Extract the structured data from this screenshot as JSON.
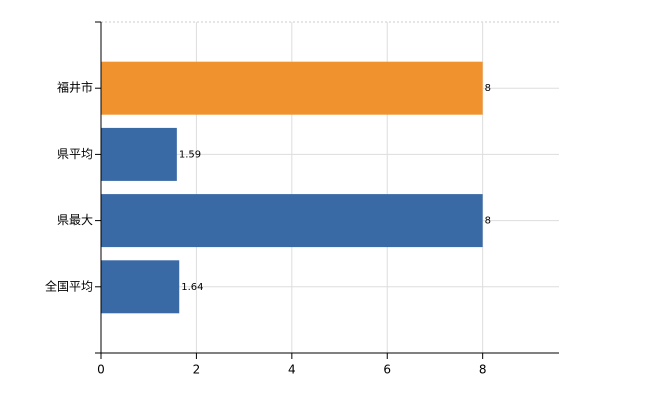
{
  "chart_data": {
    "type": "hbar",
    "categories": [
      "福井市",
      "県平均",
      "県最大",
      "全国平均"
    ],
    "values": [
      8,
      1.59,
      8,
      1.64
    ],
    "colors": [
      "#f0932f",
      "#3a6aa6",
      "#3a6aa6",
      "#3a6aa6"
    ],
    "xlim": [
      0,
      9.6
    ],
    "xticks": [
      0,
      2,
      4,
      6,
      8
    ],
    "grid": true
  }
}
